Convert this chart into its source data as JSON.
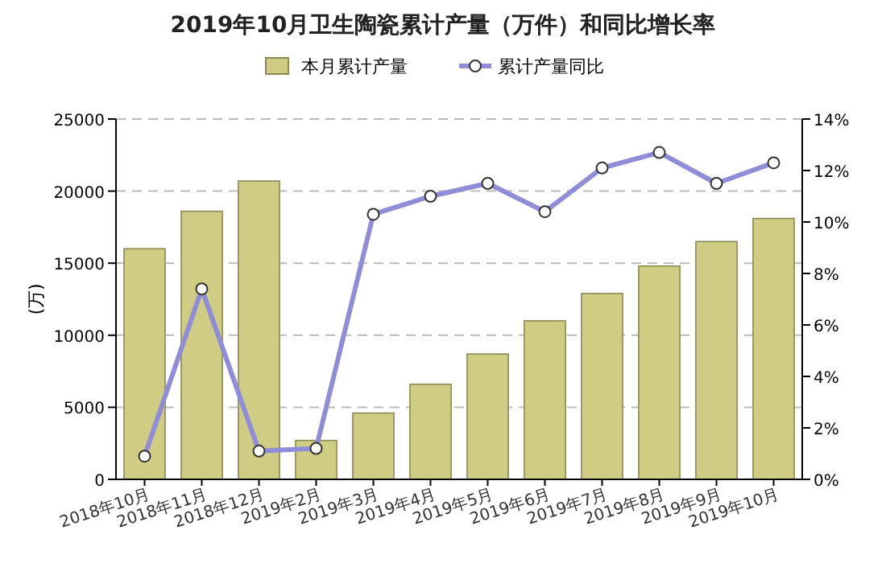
{
  "chart_data": {
    "type": "bar",
    "title": "2019年10月卫生陶瓷累计产量（万件）和同比增长率",
    "ylabel": "(万)",
    "categories": [
      "2018年10月",
      "2018年11月",
      "2018年12月",
      "2019年2月",
      "2019年3月",
      "2019年4月",
      "2019年5月",
      "2019年6月",
      "2019年7月",
      "2019年8月",
      "2019年9月",
      "2019年10月"
    ],
    "series": [
      {
        "name": "本月累计产量",
        "color": "#cfcd83",
        "values": [
          16000,
          18600,
          20700,
          2700,
          4600,
          6600,
          8700,
          11000,
          12900,
          14800,
          16500,
          18100
        ]
      },
      {
        "name": "累计产量同比",
        "type": "line",
        "axis": "y2",
        "color": "#8f8cd8",
        "values": [
          0.9,
          7.4,
          1.1,
          1.2,
          10.3,
          11.0,
          11.5,
          10.4,
          12.1,
          12.7,
          11.5,
          12.3
        ]
      }
    ],
    "ylim": [
      0,
      25000
    ],
    "yticks": [
      0,
      5000,
      10000,
      15000,
      20000,
      25000
    ],
    "y2lim": [
      0,
      14
    ],
    "y2ticks": [
      {
        "value": 0,
        "label": "0%"
      },
      {
        "value": 2,
        "label": "2%"
      },
      {
        "value": 4,
        "label": "4%"
      },
      {
        "value": 6,
        "label": "6%"
      },
      {
        "value": 8,
        "label": "8%"
      },
      {
        "value": 10,
        "label": "10%"
      },
      {
        "value": 12,
        "label": "12%"
      },
      {
        "value": 14,
        "label": "14%"
      }
    ],
    "grid": "y",
    "legend": "top",
    "marker": "circle"
  }
}
